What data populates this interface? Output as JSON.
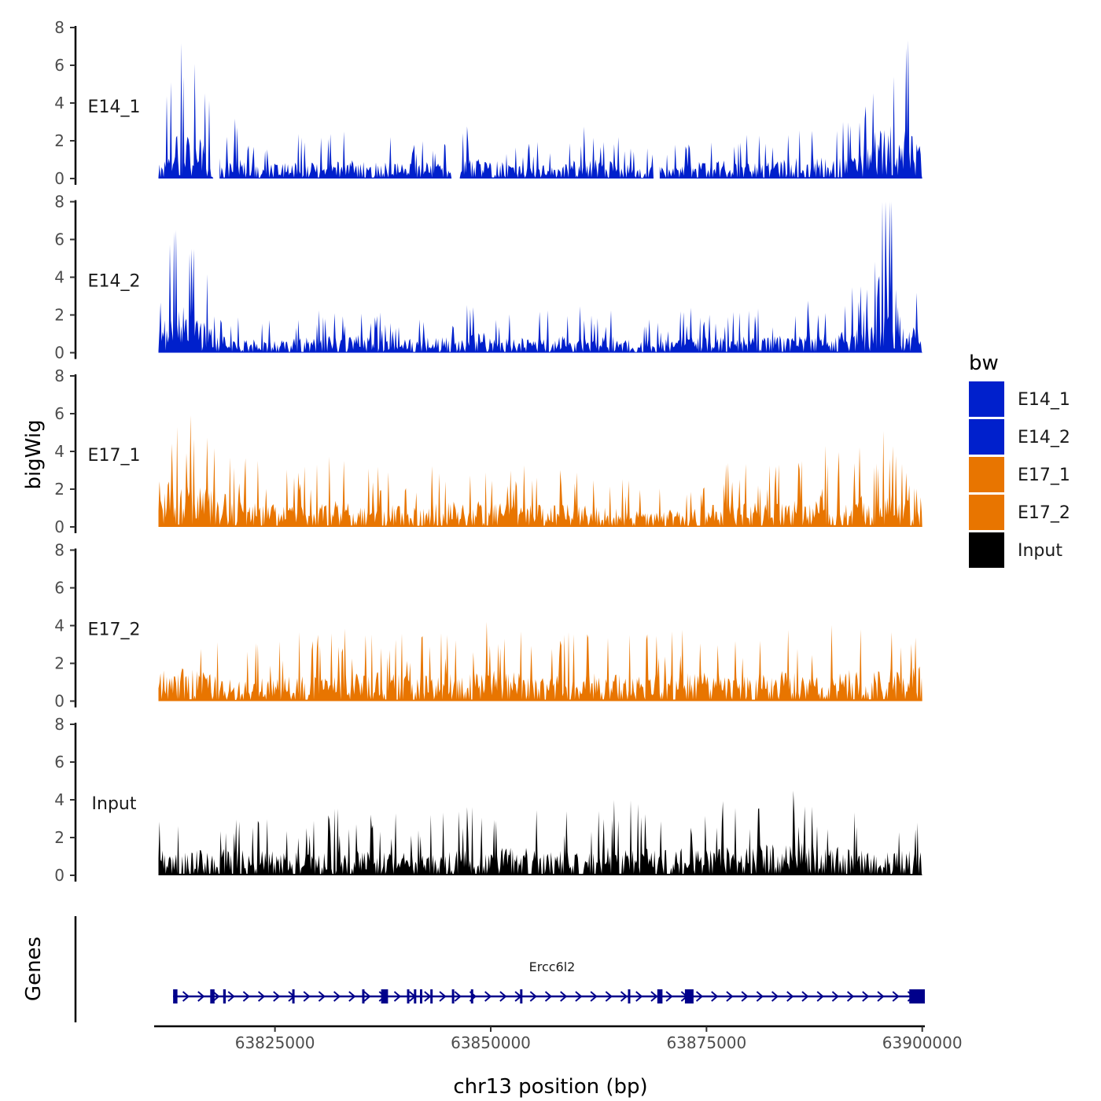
{
  "chart_data": {
    "type": "area",
    "title": "",
    "ylabel": "bigWig",
    "genes_label": "Genes",
    "xlabel": "chr13 position (bp)",
    "chromosome": "chr13",
    "xlim": [
      63811000,
      63900300
    ],
    "ylim": [
      0,
      8
    ],
    "yticks": [
      0,
      2,
      4,
      6,
      8
    ],
    "xticks": [
      63825000,
      63850000,
      63875000,
      63900000
    ],
    "xtick_labels": [
      "63825000",
      "63850000",
      "63875000",
      "63900000"
    ],
    "series": [
      {
        "name": "E14_1",
        "label": "E14_1",
        "color": "#0020cc",
        "profile": [
          [
            63812000,
            1.5
          ],
          [
            63813000,
            2.4
          ],
          [
            63814000,
            3.6
          ],
          [
            63815500,
            2.6
          ],
          [
            63817000,
            2.2
          ],
          [
            63818000,
            1.8
          ],
          [
            63819000,
            0.9
          ],
          [
            63820500,
            1.4
          ],
          [
            63822000,
            0.8
          ],
          [
            63825000,
            0.9
          ],
          [
            63828000,
            1.0
          ],
          [
            63831000,
            1.0
          ],
          [
            63834000,
            1.1
          ],
          [
            63837000,
            1.0
          ],
          [
            63840000,
            0.9
          ],
          [
            63843000,
            1.0
          ],
          [
            63846000,
            1.0
          ],
          [
            63849000,
            1.4
          ],
          [
            63852000,
            0.9
          ],
          [
            63855000,
            0.8
          ],
          [
            63858000,
            0.9
          ],
          [
            63861000,
            1.3
          ],
          [
            63864000,
            1.0
          ],
          [
            63867000,
            0.8
          ],
          [
            63870000,
            0.7
          ],
          [
            63873000,
            0.9
          ],
          [
            63876000,
            1.1
          ],
          [
            63879000,
            1.0
          ],
          [
            63882000,
            1.0
          ],
          [
            63885000,
            1.2
          ],
          [
            63888000,
            1.5
          ],
          [
            63890000,
            1.2
          ],
          [
            63893000,
            1.5
          ],
          [
            63895000,
            3.9
          ],
          [
            63896500,
            3.5
          ],
          [
            63898000,
            3.2
          ],
          [
            63899500,
            3.0
          ]
        ],
        "gaps": [
          [
            63817800,
            63818500
          ],
          [
            63845400,
            63846300
          ],
          [
            63868800,
            63869500
          ]
        ]
      },
      {
        "name": "E14_2",
        "label": "E14_2",
        "color": "#0020cc",
        "profile": [
          [
            63812000,
            2.0
          ],
          [
            63813500,
            2.8
          ],
          [
            63815000,
            2.7
          ],
          [
            63817000,
            1.8
          ],
          [
            63819000,
            1.0
          ],
          [
            63822000,
            0.9
          ],
          [
            63825000,
            0.7
          ],
          [
            63828000,
            0.9
          ],
          [
            63831000,
            1.0
          ],
          [
            63834000,
            1.1
          ],
          [
            63837000,
            0.9
          ],
          [
            63840000,
            0.8
          ],
          [
            63843000,
            1.0
          ],
          [
            63846000,
            0.9
          ],
          [
            63849000,
            1.3
          ],
          [
            63852000,
            0.9
          ],
          [
            63855000,
            0.9
          ],
          [
            63858000,
            1.0
          ],
          [
            63861000,
            1.1
          ],
          [
            63864000,
            1.0
          ],
          [
            63867000,
            0.8
          ],
          [
            63870000,
            0.8
          ],
          [
            63873000,
            1.0
          ],
          [
            63876000,
            1.1
          ],
          [
            63879000,
            1.0
          ],
          [
            63882000,
            1.0
          ],
          [
            63885000,
            1.1
          ],
          [
            63888000,
            1.2
          ],
          [
            63891000,
            1.3
          ],
          [
            63894000,
            1.8
          ],
          [
            63895200,
            6.0
          ],
          [
            63896000,
            7.7
          ],
          [
            63897000,
            3.5
          ],
          [
            63898000,
            1.5
          ],
          [
            63900000,
            1.6
          ]
        ],
        "gaps": []
      },
      {
        "name": "E17_1",
        "label": "E17_1",
        "color": "#e87500",
        "profile": [
          [
            63812000,
            3.3
          ],
          [
            63814000,
            2.4
          ],
          [
            63816000,
            2.6
          ],
          [
            63818000,
            2.2
          ],
          [
            63820000,
            1.8
          ],
          [
            63823000,
            1.5
          ],
          [
            63826000,
            1.3
          ],
          [
            63829000,
            1.4
          ],
          [
            63832000,
            1.6
          ],
          [
            63835000,
            1.3
          ],
          [
            63838000,
            1.4
          ],
          [
            63841000,
            1.2
          ],
          [
            63844000,
            1.5
          ],
          [
            63847000,
            1.6
          ],
          [
            63850000,
            1.5
          ],
          [
            63853000,
            1.4
          ],
          [
            63856000,
            1.3
          ],
          [
            63859000,
            1.4
          ],
          [
            63862000,
            1.2
          ],
          [
            63865000,
            1.1
          ],
          [
            63868000,
            1.0
          ],
          [
            63871000,
            1.1
          ],
          [
            63874000,
            1.3
          ],
          [
            63877000,
            1.4
          ],
          [
            63880000,
            1.5
          ],
          [
            63883000,
            1.4
          ],
          [
            63886000,
            1.6
          ],
          [
            63888000,
            2.8
          ],
          [
            63890000,
            1.8
          ],
          [
            63893000,
            1.9
          ],
          [
            63896000,
            2.2
          ],
          [
            63898000,
            1.8
          ],
          [
            63900000,
            1.0
          ]
        ],
        "gaps": []
      },
      {
        "name": "E17_2",
        "label": "E17_2",
        "color": "#e87500",
        "profile": [
          [
            63812000,
            1.8
          ],
          [
            63814000,
            2.1
          ],
          [
            63816000,
            1.9
          ],
          [
            63818000,
            1.5
          ],
          [
            63821000,
            1.2
          ],
          [
            63824000,
            1.4
          ],
          [
            63827000,
            1.5
          ],
          [
            63830000,
            1.6
          ],
          [
            63833000,
            1.6
          ],
          [
            63836000,
            1.9
          ],
          [
            63839000,
            1.6
          ],
          [
            63842000,
            1.5
          ],
          [
            63845000,
            1.6
          ],
          [
            63848000,
            1.7
          ],
          [
            63851000,
            1.9
          ],
          [
            63854000,
            1.7
          ],
          [
            63857000,
            1.6
          ],
          [
            63860000,
            1.7
          ],
          [
            63863000,
            1.8
          ],
          [
            63866000,
            1.5
          ],
          [
            63869000,
            1.6
          ],
          [
            63872000,
            1.7
          ],
          [
            63875000,
            1.7
          ],
          [
            63878000,
            1.6
          ],
          [
            63881000,
            1.6
          ],
          [
            63884000,
            1.8
          ],
          [
            63887000,
            1.7
          ],
          [
            63890000,
            1.8
          ],
          [
            63893000,
            1.9
          ],
          [
            63896000,
            2.0
          ],
          [
            63898000,
            1.9
          ],
          [
            63900000,
            2.2
          ]
        ],
        "gaps": []
      },
      {
        "name": "Input",
        "label": "Input",
        "color": "#000000",
        "profile": [
          [
            63812000,
            1.8
          ],
          [
            63815000,
            1.6
          ],
          [
            63818000,
            1.8
          ],
          [
            63821000,
            1.6
          ],
          [
            63824000,
            1.5
          ],
          [
            63827000,
            1.4
          ],
          [
            63830000,
            1.3
          ],
          [
            63833000,
            1.6
          ],
          [
            63836000,
            1.5
          ],
          [
            63839000,
            1.4
          ],
          [
            63842000,
            1.3
          ],
          [
            63845000,
            1.4
          ],
          [
            63848000,
            1.6
          ],
          [
            63851000,
            1.6
          ],
          [
            63854000,
            1.7
          ],
          [
            63857000,
            1.5
          ],
          [
            63860000,
            1.5
          ],
          [
            63863000,
            1.7
          ],
          [
            63866000,
            1.8
          ],
          [
            63869000,
            1.5
          ],
          [
            63872000,
            1.6
          ],
          [
            63875000,
            1.6
          ],
          [
            63878000,
            1.8
          ],
          [
            63881000,
            1.9
          ],
          [
            63884000,
            1.8
          ],
          [
            63887000,
            2.0
          ],
          [
            63890000,
            1.7
          ],
          [
            63893000,
            1.5
          ],
          [
            63896000,
            1.4
          ],
          [
            63899000,
            1.5
          ]
        ],
        "gaps": []
      }
    ],
    "legend": {
      "title": "bw",
      "position": "right",
      "entries": [
        {
          "label": "E14_1",
          "color": "#0020cc"
        },
        {
          "label": "E14_2",
          "color": "#0020cc"
        },
        {
          "label": "E17_1",
          "color": "#e87500"
        },
        {
          "label": "E17_2",
          "color": "#e87500"
        },
        {
          "label": "Input",
          "color": "#000000"
        }
      ]
    },
    "gene": {
      "name": "Ercc6l2",
      "color": "#00008b",
      "start": 63813200,
      "end": 63900300,
      "strand": "+",
      "exons": [
        [
          63813200,
          63813700
        ],
        [
          63817500,
          63818000
        ],
        [
          63819000,
          63819300
        ],
        [
          63827000,
          63827100
        ],
        [
          63835100,
          63835300
        ],
        [
          63837300,
          63838100
        ],
        [
          63840300,
          63840500
        ],
        [
          63841100,
          63841300
        ],
        [
          63841800,
          63841900
        ],
        [
          63843000,
          63843200
        ],
        [
          63845500,
          63845600
        ],
        [
          63847700,
          63847800
        ],
        [
          63853400,
          63853500
        ],
        [
          63865900,
          63866000
        ],
        [
          63869300,
          63869900
        ],
        [
          63872500,
          63873500
        ],
        [
          63898500,
          63900300
        ]
      ]
    }
  }
}
